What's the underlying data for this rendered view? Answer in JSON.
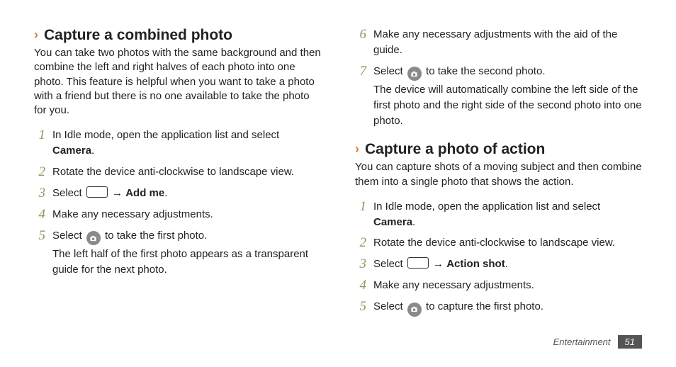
{
  "colors": {
    "accent": "#e07b2e",
    "step_number": "#8a9a5b",
    "text": "#222222",
    "icon_fill": "#8a8a8a",
    "page_badge_bg": "#555555"
  },
  "typography": {
    "heading_fontsize": 21,
    "body_fontsize": 15,
    "number_font": "serif-italic"
  },
  "left": {
    "heading": "Capture a combined photo",
    "lead": "You can take two photos with the same background and then combine the left and right halves of each photo into one photo. This feature is helpful when you want to take a photo with a friend but there is no one available to take the photo for you.",
    "steps": [
      {
        "n": "1",
        "text_pre": "In Idle mode, open the application list and select ",
        "bold": "Camera",
        "text_post": "."
      },
      {
        "n": "2",
        "text_pre": "Rotate the device anti-clockwise to landscape view."
      },
      {
        "n": "3",
        "text_pre": "Select ",
        "icon": "rect",
        "mid": " → ",
        "bold": "Add me",
        "text_post": "."
      },
      {
        "n": "4",
        "text_pre": "Make any necessary adjustments."
      },
      {
        "n": "5",
        "text_pre": "Select ",
        "icon": "cam",
        "mid": " to take the first photo.",
        "sub": "The left half of the first photo appears as a transparent guide for the next photo."
      }
    ]
  },
  "right": {
    "cont_steps": [
      {
        "n": "6",
        "text_pre": "Make any necessary adjustments with the aid of the guide."
      },
      {
        "n": "7",
        "text_pre": "Select ",
        "icon": "cam",
        "mid": " to take the second photo.",
        "sub": "The device will automatically combine the left side of the first photo and the right side of the second photo into one photo."
      }
    ],
    "heading": "Capture a photo of action",
    "lead": "You can capture shots of a moving subject and then combine them into a single photo that shows the action.",
    "steps": [
      {
        "n": "1",
        "text_pre": "In Idle mode, open the application list and select ",
        "bold": "Camera",
        "text_post": "."
      },
      {
        "n": "2",
        "text_pre": "Rotate the device anti-clockwise to landscape view."
      },
      {
        "n": "3",
        "text_pre": "Select ",
        "icon": "rect",
        "mid": " → ",
        "bold": "Action shot",
        "text_post": "."
      },
      {
        "n": "4",
        "text_pre": "Make any necessary adjustments."
      },
      {
        "n": "5",
        "text_pre": "Select ",
        "icon": "cam",
        "mid": " to capture the first photo."
      }
    ]
  },
  "footer": {
    "section": "Entertainment",
    "page": "51"
  }
}
